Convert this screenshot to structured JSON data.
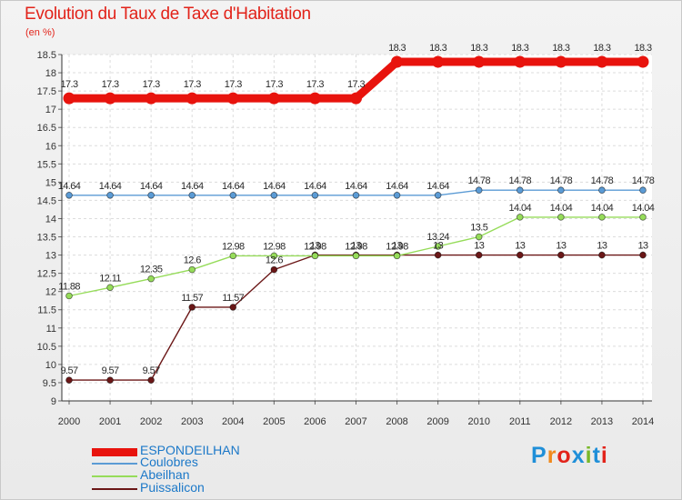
{
  "chart_data": {
    "type": "line",
    "title": "Evolution du Taux de Taxe d'Habitation",
    "ylabel": "(en %)",
    "x": [
      "2000",
      "2001",
      "2002",
      "2003",
      "2004",
      "2005",
      "2006",
      "2007",
      "2008",
      "2009",
      "2010",
      "2011",
      "2012",
      "2013",
      "2014"
    ],
    "ylim": [
      9,
      18.5
    ],
    "yticks": [
      "9",
      "9.5",
      "10",
      "10.5",
      "11",
      "11.5",
      "12",
      "12.5",
      "13",
      "13.5",
      "14",
      "14.5",
      "15",
      "15.5",
      "16",
      "16.5",
      "17",
      "17.5",
      "18",
      "18.5"
    ],
    "series": [
      {
        "name": "ESPONDEILHAN",
        "color": "#e8130d",
        "values": [
          17.3,
          17.3,
          17.3,
          17.3,
          17.3,
          17.3,
          17.3,
          17.3,
          18.3,
          18.3,
          18.3,
          18.3,
          18.3,
          18.3,
          18.3
        ],
        "labels": [
          "17.3",
          "17.3",
          "17.3",
          "17.3",
          "17.3",
          "17.3",
          "17.3",
          "17.3",
          "18.3",
          "18.3",
          "18.3",
          "18.3",
          "18.3",
          "18.3",
          "18.3"
        ]
      },
      {
        "name": "Coulobres",
        "color": "#5b9bd5",
        "values": [
          14.64,
          14.64,
          14.64,
          14.64,
          14.64,
          14.64,
          14.64,
          14.64,
          14.64,
          14.64,
          14.78,
          14.78,
          14.78,
          14.78,
          14.78
        ],
        "labels": [
          "14.64",
          "14.64",
          "14.64",
          "14.64",
          "14.64",
          "14.64",
          "14.64",
          "14.64",
          "14.64",
          "14.64",
          "14.78",
          "14.78",
          "14.78",
          "14.78",
          "14.78"
        ]
      },
      {
        "name": "Abeilhan",
        "color": "#96dc5a",
        "values": [
          11.88,
          12.11,
          12.35,
          12.6,
          12.98,
          12.98,
          12.98,
          12.98,
          12.98,
          13.24,
          13.5,
          14.04,
          14.04,
          14.04,
          14.04
        ],
        "labels": [
          "11.88",
          "12.11",
          "12.35",
          "12.6",
          "12.98",
          "12.98",
          "12.98",
          "12.98",
          "12.98",
          "13.24",
          "13.5",
          "14.04",
          "14.04",
          "14.04",
          "14.04"
        ]
      },
      {
        "name": "Puissalicon",
        "color": "#6b1717",
        "values": [
          9.57,
          9.57,
          9.57,
          11.57,
          11.57,
          12.6,
          13,
          13,
          13,
          13,
          13,
          13,
          13,
          13,
          13
        ],
        "labels": [
          "9.57",
          "9.57",
          "9.57",
          "11.57",
          "11.57",
          "12.6",
          "13",
          "13",
          "13",
          "13",
          "13",
          "13",
          "13",
          "13",
          "13"
        ]
      }
    ]
  },
  "logo": {
    "text": "Proxiti",
    "letters": [
      "P",
      "r",
      "o",
      "x",
      "i",
      "t",
      "i"
    ],
    "colors": [
      "#1f8fd8",
      "#f08a1d",
      "#e2231a",
      "#1f8fd8",
      "#79b829",
      "#1f8fd8",
      "#e2231a"
    ]
  }
}
